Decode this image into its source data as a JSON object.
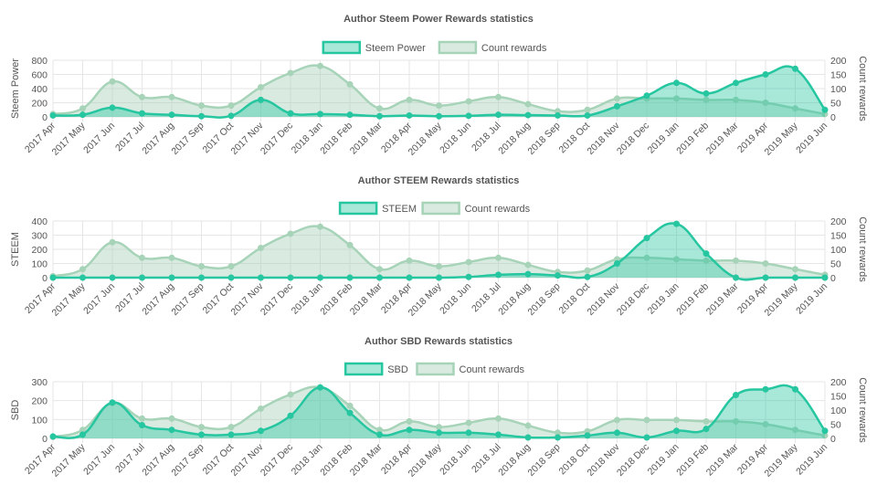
{
  "colors": {
    "primary_line": "#26c6a0",
    "primary_fill": "rgba(38,198,160,0.40)",
    "count_line": "#a7d3b8",
    "count_fill": "rgba(160,205,180,0.40)",
    "grid": "#e6e6e6",
    "text": "#555555"
  },
  "chart_data": [
    {
      "type": "area",
      "title": "Author Steem Power Rewards statistics",
      "categories": [
        "2017 Apr",
        "2017 May",
        "2017 Jun",
        "2017 Jul",
        "2017 Aug",
        "2017 Sep",
        "2017 Oct",
        "2017 Nov",
        "2017 Dec",
        "2018 Jan",
        "2018 Feb",
        "2018 Mar",
        "2018 Apr",
        "2018 May",
        "2018 Jun",
        "2018 Jul",
        "2018 Aug",
        "2018 Sep",
        "2018 Oct",
        "2018 Nov",
        "2018 Dec",
        "2019 Jan",
        "2019 Feb",
        "2019 Mar",
        "2019 Apr",
        "2019 May",
        "2019 Jun"
      ],
      "ylabel": "Steem Power",
      "y2label": "Count rewards",
      "ylim": [
        0,
        800
      ],
      "yticks": [
        "800",
        "600",
        "400",
        "200",
        "0"
      ],
      "y2lim": [
        0,
        200
      ],
      "y2ticks": [
        "200",
        "150",
        "100",
        "50",
        "0"
      ],
      "grid": true,
      "legend_position": "top",
      "series": [
        {
          "name": "Steem Power",
          "axis": "left",
          "values": [
            20,
            30,
            130,
            50,
            30,
            10,
            15,
            240,
            50,
            40,
            30,
            10,
            20,
            10,
            15,
            30,
            25,
            20,
            20,
            150,
            300,
            480,
            330,
            480,
            600,
            680,
            100
          ]
        },
        {
          "name": "Count rewards",
          "axis": "right",
          "values": [
            10,
            30,
            125,
            70,
            70,
            40,
            40,
            105,
            155,
            180,
            115,
            30,
            60,
            40,
            55,
            70,
            45,
            20,
            25,
            65,
            65,
            65,
            60,
            60,
            50,
            30,
            10
          ]
        }
      ]
    },
    {
      "type": "area",
      "title": "Author STEEM Rewards statistics",
      "categories": [
        "2017 Apr",
        "2017 May",
        "2017 Jun",
        "2017 Jul",
        "2017 Aug",
        "2017 Sep",
        "2017 Oct",
        "2017 Nov",
        "2017 Dec",
        "2018 Jan",
        "2018 Feb",
        "2018 Mar",
        "2018 Apr",
        "2018 May",
        "2018 Jun",
        "2018 Jul",
        "2018 Aug",
        "2018 Sep",
        "2018 Oct",
        "2018 Nov",
        "2018 Dec",
        "2019 Jan",
        "2019 Feb",
        "2019 Mar",
        "2019 Apr",
        "2019 May",
        "2019 Jun"
      ],
      "ylabel": "STEEM",
      "y2label": "Count rewards",
      "ylim": [
        0,
        400
      ],
      "yticks": [
        "400",
        "300",
        "200",
        "100",
        "0"
      ],
      "y2lim": [
        0,
        200
      ],
      "y2ticks": [
        "200",
        "150",
        "100",
        "50",
        "0"
      ],
      "grid": true,
      "legend_position": "top",
      "series": [
        {
          "name": "STEEM",
          "axis": "left",
          "values": [
            0,
            0,
            0,
            0,
            0,
            0,
            0,
            0,
            0,
            0,
            0,
            0,
            0,
            0,
            5,
            20,
            25,
            15,
            5,
            100,
            280,
            380,
            170,
            0,
            0,
            0,
            0
          ]
        },
        {
          "name": "Count rewards",
          "axis": "right",
          "values": [
            5,
            30,
            125,
            70,
            70,
            40,
            40,
            105,
            155,
            180,
            115,
            30,
            60,
            40,
            55,
            70,
            45,
            20,
            25,
            65,
            70,
            65,
            60,
            60,
            50,
            30,
            10
          ]
        }
      ]
    },
    {
      "type": "area",
      "title": "Author SBD Rewards statistics",
      "categories": [
        "2017 Apr",
        "2017 May",
        "2017 Jun",
        "2017 Jul",
        "2017 Aug",
        "2017 Sep",
        "2017 Oct",
        "2017 Nov",
        "2017 Dec",
        "2018 Jan",
        "2018 Feb",
        "2018 Mar",
        "2018 Apr",
        "2018 May",
        "2018 Jun",
        "2018 Jul",
        "2018 Aug",
        "2018 Sep",
        "2018 Oct",
        "2018 Nov",
        "2018 Dec",
        "2019 Jan",
        "2019 Feb",
        "2019 Mar",
        "2019 Apr",
        "2019 May",
        "2019 Jun"
      ],
      "ylabel": "SBD",
      "y2label": "Count rewards",
      "ylim": [
        0,
        300
      ],
      "yticks": [
        "300",
        "200",
        "100",
        "0"
      ],
      "y2lim": [
        0,
        200
      ],
      "y2ticks": [
        "200",
        "150",
        "100",
        "50",
        "0"
      ],
      "grid": true,
      "legend_position": "top",
      "series": [
        {
          "name": "SBD",
          "axis": "left",
          "values": [
            10,
            20,
            190,
            70,
            45,
            20,
            20,
            40,
            120,
            270,
            135,
            20,
            45,
            30,
            30,
            20,
            5,
            5,
            15,
            30,
            5,
            40,
            50,
            230,
            260,
            260,
            40
          ]
        },
        {
          "name": "Count rewards",
          "axis": "right",
          "values": [
            5,
            30,
            125,
            70,
            70,
            40,
            40,
            105,
            155,
            180,
            115,
            30,
            60,
            40,
            55,
            70,
            45,
            20,
            25,
            65,
            65,
            65,
            60,
            60,
            50,
            30,
            10
          ]
        }
      ]
    }
  ]
}
